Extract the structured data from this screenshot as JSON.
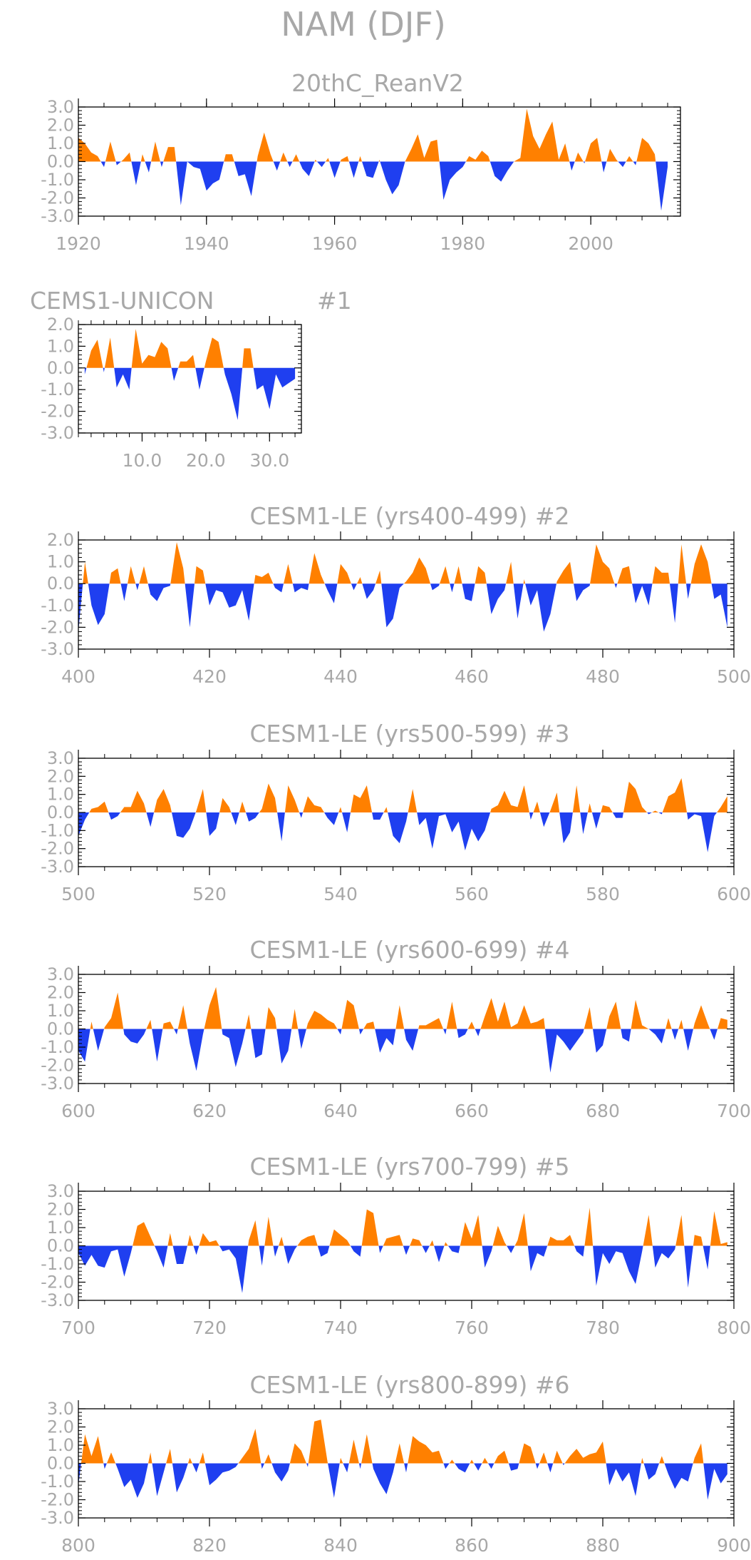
{
  "figure_title": "NAM (DJF)",
  "colors": {
    "positive": "#ff8000",
    "negative": "#1f3ff0",
    "frame": "#000000",
    "text": "#a8a8a8"
  },
  "chart_data": [
    {
      "type": "area",
      "title": "20thC_ReanV2",
      "xlim": [
        1920,
        2014
      ],
      "ylim": [
        -3.0,
        3.0
      ],
      "xticks": [
        "1920",
        "1940",
        "1960",
        "1980",
        "2000"
      ],
      "yticks": [
        "3.0",
        "2.0",
        "1.0",
        "0.0",
        "-1.0",
        "-2.0",
        "-3.0"
      ],
      "x_start": 1920,
      "values": [
        1.3,
        1.0,
        0.5,
        0.3,
        -0.3,
        1.1,
        -0.2,
        0.1,
        0.5,
        -1.3,
        0.4,
        -0.6,
        1.1,
        -0.3,
        0.8,
        0.8,
        -2.4,
        0.0,
        -0.3,
        -0.4,
        -1.6,
        -1.2,
        -1.0,
        0.4,
        0.4,
        -0.8,
        -0.7,
        -1.9,
        0.3,
        1.6,
        0.4,
        -0.5,
        0.5,
        -0.3,
        0.4,
        -0.4,
        -0.8,
        0.1,
        -0.3,
        0.2,
        -0.9,
        0.1,
        0.3,
        -0.9,
        0.3,
        -0.8,
        -0.9,
        0.1,
        -1.0,
        -1.8,
        -1.3,
        0.0,
        0.7,
        1.5,
        0.2,
        1.1,
        1.2,
        -2.1,
        -1.0,
        -0.6,
        -0.3,
        0.3,
        0.1,
        0.6,
        0.3,
        -0.8,
        -1.1,
        -0.5,
        0.0,
        0.2,
        2.9,
        1.4,
        0.7,
        1.5,
        2.2,
        0.1,
        1.0,
        -0.5,
        0.5,
        -0.1,
        1.0,
        1.3,
        -0.6,
        0.7,
        0.1,
        -0.3,
        0.3,
        -0.2,
        1.3,
        1.0,
        0.4,
        -2.7,
        -0.3
      ]
    },
    {
      "type": "area",
      "title": "CEMS1-UNICON",
      "label": "#1",
      "xlim": [
        0,
        35
      ],
      "ylim": [
        -3.0,
        2.0
      ],
      "xticks": [
        "10.0",
        "20.0",
        "30.0"
      ],
      "yticks": [
        "2.0",
        "1.0",
        "0.0",
        "-1.0",
        "-2.0",
        "-3.0"
      ],
      "x_start": 1,
      "values": [
        -0.3,
        0.8,
        1.3,
        -0.2,
        1.4,
        -0.9,
        -0.3,
        -1.0,
        1.8,
        0.2,
        0.6,
        0.5,
        1.2,
        0.9,
        -0.6,
        0.3,
        0.3,
        0.6,
        -1.0,
        0.3,
        1.4,
        1.2,
        -0.3,
        -1.2,
        -2.4,
        0.9,
        0.9,
        -1.0,
        -0.8,
        -1.9,
        -0.3,
        -0.9,
        -0.7,
        -0.5
      ]
    },
    {
      "type": "area",
      "title": "CESM1-LE (yrs400-499) #2",
      "xlim": [
        400,
        500
      ],
      "ylim": [
        -3.0,
        2.0
      ],
      "xticks": [
        "400",
        "420",
        "440",
        "460",
        "480",
        "500"
      ],
      "yticks": [
        "2.0",
        "1.0",
        "0.0",
        "-1.0",
        "-2.0",
        "-3.0"
      ],
      "x_start": 400,
      "values": [
        -2.2,
        1.0,
        -1.0,
        -1.9,
        -1.4,
        0.5,
        0.7,
        -0.8,
        0.8,
        -0.3,
        0.8,
        -0.5,
        -0.8,
        -0.2,
        -0.1,
        1.9,
        0.7,
        -2.0,
        0.8,
        0.6,
        -1.0,
        -0.3,
        -0.4,
        -1.1,
        -1.0,
        -0.3,
        -1.7,
        0.4,
        0.3,
        0.5,
        -0.2,
        -0.4,
        0.9,
        -0.4,
        -0.2,
        -0.3,
        1.4,
        0.4,
        -0.3,
        -0.9,
        0.9,
        0.5,
        -0.3,
        0.3,
        -0.7,
        -0.3,
        0.6,
        -2.0,
        -1.6,
        -0.2,
        0.1,
        0.5,
        1.2,
        0.7,
        -0.3,
        -0.1,
        0.8,
        -0.4,
        0.8,
        -0.7,
        -0.8,
        0.8,
        0.5,
        -1.4,
        -0.7,
        -0.3,
        1.0,
        -1.6,
        0.2,
        -1.0,
        -0.3,
        -2.2,
        -1.4,
        0.1,
        0.6,
        1.0,
        -0.8,
        -0.3,
        -0.1,
        1.8,
        1.0,
        0.7,
        -0.2,
        0.7,
        0.8,
        -0.9,
        -0.1,
        -1.0,
        0.8,
        0.5,
        0.5,
        -1.8,
        1.8,
        -0.7,
        0.9,
        1.8,
        1.0,
        -0.7,
        -0.5,
        -2.0
      ]
    },
    {
      "type": "area",
      "title": "CESM1-LE (yrs500-599) #3",
      "xlim": [
        500,
        600
      ],
      "ylim": [
        -3.0,
        3.0
      ],
      "xticks": [
        "500",
        "520",
        "540",
        "560",
        "580",
        "600"
      ],
      "yticks": [
        "3.0",
        "2.0",
        "1.0",
        "0.0",
        "-1.0",
        "-2.0",
        "-3.0"
      ],
      "x_start": 500,
      "values": [
        -1.3,
        -0.4,
        0.2,
        0.3,
        0.6,
        -0.4,
        -0.2,
        0.3,
        0.3,
        1.2,
        0.5,
        -0.8,
        0.7,
        1.3,
        0.4,
        -1.3,
        -1.4,
        -0.9,
        0.1,
        1.3,
        -1.3,
        -0.9,
        0.8,
        0.3,
        -0.7,
        0.6,
        -0.5,
        -0.3,
        0.2,
        1.6,
        0.8,
        -1.6,
        1.5,
        0.7,
        -0.3,
        0.9,
        0.4,
        0.3,
        -0.3,
        -0.7,
        0.3,
        -1.1,
        1.0,
        0.8,
        1.5,
        -0.4,
        -0.4,
        0.3,
        -1.3,
        -1.7,
        -0.5,
        1.3,
        -0.7,
        -0.3,
        -2.0,
        -0.2,
        -0.1,
        -1.1,
        -0.5,
        -2.1,
        -0.9,
        -1.6,
        -1.0,
        0.2,
        0.4,
        1.2,
        0.4,
        0.3,
        1.5,
        -0.4,
        0.6,
        -0.8,
        0.1,
        1.1,
        -1.7,
        -1.1,
        1.5,
        -1.2,
        0.5,
        -0.9,
        0.4,
        0.3,
        -0.3,
        -0.3,
        1.7,
        1.3,
        0.3,
        -0.1,
        0.1,
        -0.1,
        0.9,
        1.1,
        1.9,
        -0.4,
        -0.1,
        -0.2,
        -2.2,
        -0.2,
        0.3,
        0.9
      ]
    },
    {
      "type": "area",
      "title": "CESM1-LE (yrs600-699) #4",
      "xlim": [
        600,
        700
      ],
      "ylim": [
        -3.0,
        3.0
      ],
      "xticks": [
        "600",
        "620",
        "640",
        "660",
        "680",
        "700"
      ],
      "yticks": [
        "3.0",
        "2.0",
        "1.0",
        "0.0",
        "-1.0",
        "-2.0",
        "-3.0"
      ],
      "x_start": 600,
      "values": [
        -1.2,
        -1.8,
        0.4,
        -1.2,
        0.1,
        0.6,
        2.0,
        -0.3,
        -0.7,
        -0.8,
        -0.3,
        0.5,
        -1.8,
        0.3,
        0.4,
        -0.3,
        1.3,
        -0.8,
        -2.3,
        -0.3,
        1.3,
        2.3,
        -0.3,
        -0.5,
        -2.1,
        -0.8,
        0.8,
        -1.6,
        -1.4,
        1.2,
        0.6,
        -1.9,
        -1.2,
        1.1,
        -1.1,
        0.3,
        1.0,
        0.8,
        0.5,
        0.3,
        -0.3,
        1.6,
        1.3,
        -0.3,
        0.3,
        0.4,
        -1.3,
        -0.5,
        -0.9,
        1.3,
        -0.6,
        -1.2,
        0.2,
        0.2,
        0.4,
        0.6,
        -0.3,
        1.5,
        -0.5,
        -0.3,
        0.4,
        -0.4,
        0.7,
        1.7,
        0.4,
        1.5,
        0.1,
        0.3,
        1.3,
        0.3,
        0.4,
        0.6,
        -2.4,
        -0.3,
        -0.7,
        -1.2,
        -0.7,
        -0.2,
        1.2,
        -1.3,
        -0.9,
        0.7,
        1.5,
        -0.5,
        -0.7,
        1.6,
        0.2,
        0.0,
        -0.3,
        -0.8,
        0.6,
        -0.6,
        0.5,
        -1.2,
        0.3,
        1.3,
        0.3,
        -0.6,
        0.6,
        0.5
      ]
    },
    {
      "type": "area",
      "title": "CESM1-LE (yrs700-799) #5",
      "xlim": [
        700,
        800
      ],
      "ylim": [
        -3.0,
        3.0
      ],
      "xticks": [
        "700",
        "720",
        "740",
        "760",
        "780",
        "800"
      ],
      "yticks": [
        "3.0",
        "2.0",
        "1.0",
        "0.0",
        "-1.0",
        "-2.0",
        "-3.0"
      ],
      "x_start": 700,
      "values": [
        -0.4,
        -1.1,
        -0.5,
        -1.1,
        -1.2,
        -0.3,
        -0.2,
        -1.7,
        -0.4,
        1.1,
        1.3,
        0.5,
        -0.3,
        -1.2,
        0.7,
        -1.0,
        -1.0,
        0.6,
        -0.5,
        0.7,
        0.2,
        0.3,
        -0.3,
        -0.2,
        -0.7,
        -2.6,
        0.3,
        1.4,
        -1.1,
        1.6,
        -0.6,
        0.5,
        -1.0,
        -0.2,
        0.3,
        0.5,
        0.6,
        -0.6,
        -0.4,
        0.9,
        0.6,
        0.3,
        -0.3,
        -0.6,
        2.0,
        1.8,
        -0.4,
        0.4,
        0.5,
        0.6,
        -0.5,
        0.4,
        0.3,
        -0.4,
        0.3,
        -0.9,
        0.2,
        -0.3,
        -0.4,
        1.3,
        0.4,
        1.7,
        -1.2,
        -0.3,
        1.1,
        0.2,
        -0.4,
        0.3,
        1.8,
        -1.4,
        -0.4,
        -0.6,
        0.5,
        0.3,
        0.3,
        0.6,
        -0.3,
        -0.6,
        2.1,
        -2.2,
        -0.4,
        -1.0,
        -0.3,
        -0.4,
        -1.4,
        -2.1,
        -0.3,
        1.7,
        -1.2,
        -0.4,
        -0.7,
        -0.2,
        1.7,
        -2.3,
        0.6,
        0.5,
        -1.3,
        1.9,
        0.1,
        0.2
      ]
    },
    {
      "type": "area",
      "title": "CESM1-LE (yrs800-899) #6",
      "xlim": [
        800,
        900
      ],
      "ylim": [
        -3.0,
        3.0
      ],
      "xticks": [
        "800",
        "820",
        "840",
        "860",
        "880",
        "900"
      ],
      "yticks": [
        "3.0",
        "2.0",
        "1.0",
        "0.0",
        "-1.0",
        "-2.0",
        "-3.0"
      ],
      "x_start": 800,
      "values": [
        -1.2,
        1.6,
        0.4,
        1.5,
        -0.3,
        0.6,
        -0.3,
        -1.3,
        -0.9,
        -1.9,
        -1.1,
        0.6,
        -1.8,
        -0.5,
        0.8,
        -1.6,
        -0.8,
        0.3,
        -0.5,
        0.6,
        -1.2,
        -0.9,
        -0.5,
        -0.4,
        -0.2,
        0.3,
        0.8,
        1.9,
        -0.3,
        0.5,
        -0.5,
        -1.0,
        -0.4,
        1.1,
        0.7,
        -0.2,
        2.3,
        2.4,
        0.1,
        -1.9,
        0.3,
        -0.5,
        1.3,
        -0.3,
        1.6,
        -0.3,
        -1.1,
        -1.7,
        -0.5,
        1.1,
        -0.5,
        1.5,
        1.2,
        1.0,
        0.6,
        0.7,
        -0.3,
        0.2,
        -0.3,
        -0.5,
        0.2,
        -0.4,
        0.3,
        -0.3,
        0.4,
        0.7,
        -0.4,
        -0.3,
        1.1,
        0.9,
        -0.3,
        0.6,
        -0.5,
        0.7,
        -0.1,
        0.4,
        0.8,
        0.3,
        0.5,
        0.6,
        1.2,
        -1.2,
        -0.3,
        -1.0,
        -0.5,
        -1.8,
        0.3,
        -0.9,
        -0.6,
        0.4,
        -0.6,
        -1.4,
        -0.8,
        -1.0,
        0.3,
        1.1,
        -2.0,
        -0.3,
        -1.1,
        -0.6
      ]
    }
  ]
}
